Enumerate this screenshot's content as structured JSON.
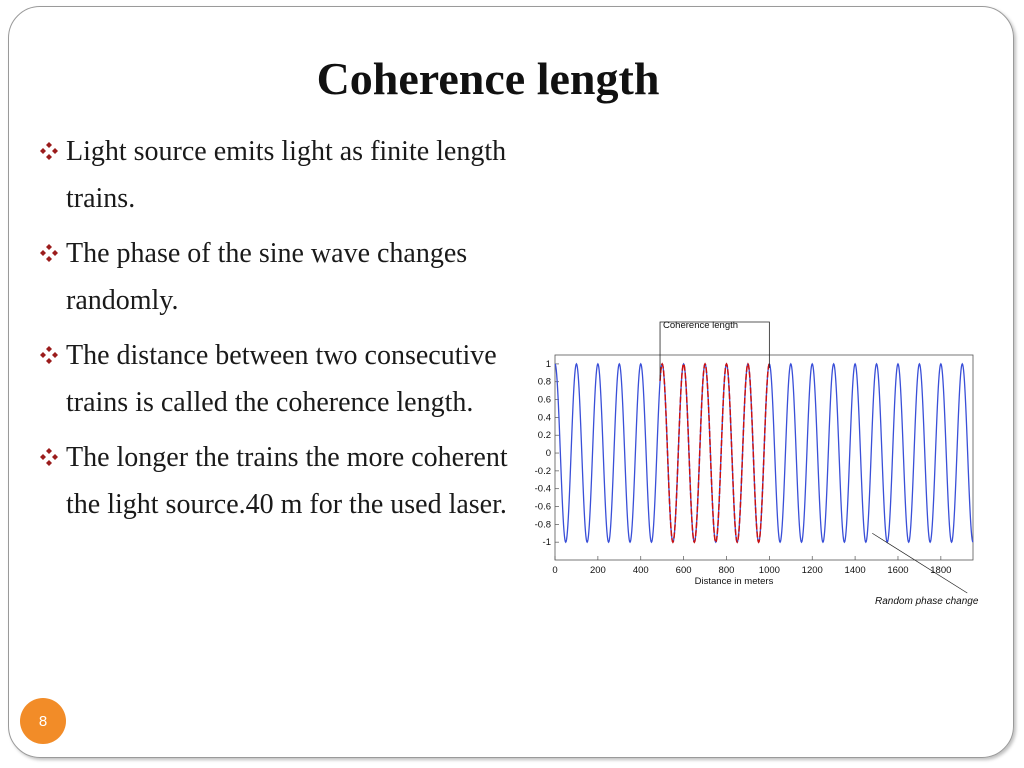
{
  "slide": {
    "title": "Coherence length",
    "bullets": [
      "Light source emits light as finite length trains.",
      "The phase of the sine wave changes randomly.",
      "The distance between two consecutive trains is called the coherence length.",
      "The longer the trains the more coherent the light source.40 m for the used laser."
    ],
    "page_number": "8",
    "accent_color": "#f28c28",
    "bullet_icon": "diamond-bullet-icon",
    "bullet_color": "#9b1c1c"
  },
  "chart_data": {
    "type": "line",
    "title": "",
    "xlabel": "Distance in meters",
    "ylabel": "",
    "xlim": [
      0,
      1950
    ],
    "ylim": [
      -1.2,
      1.1
    ],
    "x_ticks": [
      "0",
      "200",
      "400",
      "600",
      "800",
      "1000",
      "1200",
      "1400",
      "1600",
      "1800"
    ],
    "x_tick_values": [
      0,
      200,
      400,
      600,
      800,
      1000,
      1200,
      1400,
      1600,
      1800
    ],
    "y_ticks": [
      "1",
      "0.8",
      "0.6",
      "0.4",
      "0.2",
      "0",
      "-0.2",
      "-0.4",
      "-0.6",
      "-0.8",
      "-1"
    ],
    "y_tick_values": [
      1,
      0.8,
      0.6,
      0.4,
      0.2,
      0,
      -0.2,
      -0.4,
      -0.6,
      -0.8,
      -1
    ],
    "grid": false,
    "series": [
      {
        "color": "#3a4fd8",
        "period": 100,
        "x_range": [
          0,
          1950
        ],
        "amplitude": 1
      },
      {
        "color": "#cc1010",
        "period": 100,
        "x_range": [
          490,
          1000
        ],
        "amplitude": 1
      }
    ],
    "annotations": [
      {
        "text": "Coherence length",
        "x_start": 490,
        "x_end": 1000
      },
      {
        "text": "Random phase change",
        "x": 1480
      }
    ]
  }
}
